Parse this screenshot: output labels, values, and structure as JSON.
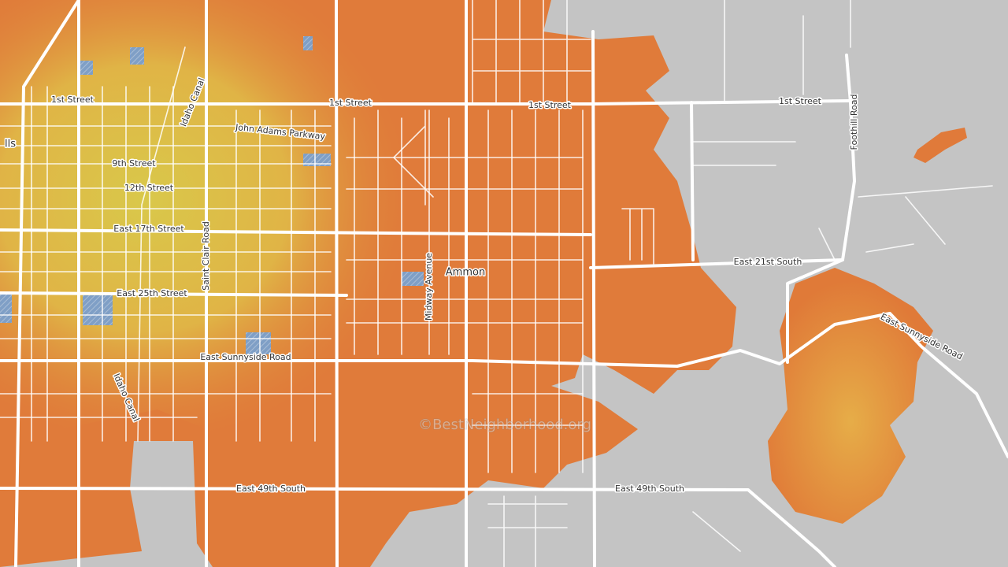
{
  "map": {
    "place_label": "Ammon",
    "partial_label": "lls",
    "watermark": "©BestNeighborhood.org",
    "street_labels": [
      "1st Street",
      "1st Street",
      "1st Street",
      "1st Street",
      "John Adams Parkway",
      "Idaho Canal",
      "9th Street",
      "12th Street",
      "East 17th Street",
      "Saint Clair Road",
      "East 25th Street",
      "Midway Avenue",
      "East 21st South",
      "Foothill Road",
      "East Sunnyside Road",
      "East Sunnyside Road",
      "Idaho Canal",
      "East 49th South",
      "East 49th South"
    ]
  }
}
